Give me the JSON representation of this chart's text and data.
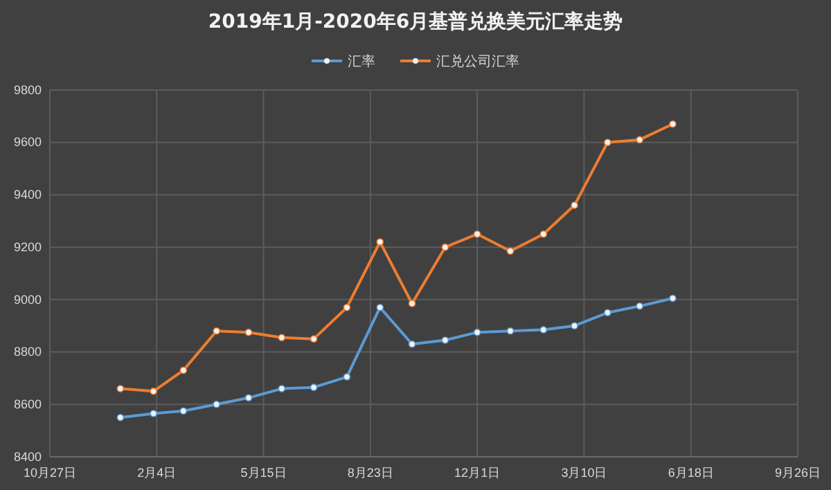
{
  "chart_data": {
    "type": "line",
    "title": "2019年1月-2020年6月基普兑换美元汇率走势",
    "x": [
      "2019-01",
      "2019-02",
      "2019-03",
      "2019-04",
      "2019-05",
      "2019-06",
      "2019-07",
      "2019-08",
      "2019-09",
      "2019-10",
      "2019-11",
      "2019-12",
      "2020-01",
      "2020-02",
      "2020-03",
      "2020-04",
      "2020-05",
      "2020-06"
    ],
    "series": [
      {
        "name": "汇率",
        "color": "#5b9bd5",
        "values": [
          8550,
          8565,
          8575,
          8600,
          8625,
          8660,
          8665,
          8705,
          8970,
          8830,
          8845,
          8875,
          8880,
          8885,
          8900,
          8950,
          8975,
          9005
        ]
      },
      {
        "name": "汇兑公司汇率",
        "color": "#ed7d31",
        "values": [
          8660,
          8650,
          8730,
          8880,
          8875,
          8855,
          8850,
          8970,
          9220,
          8985,
          9200,
          9250,
          9185,
          9250,
          9360,
          9600,
          9610,
          9670
        ]
      }
    ],
    "xlim": [
      "2018-10-27",
      "2020-09-26"
    ],
    "xticks": [
      {
        "value": "2018-10-27",
        "label": "10月27日"
      },
      {
        "value": "2019-02-04",
        "label": "2月4日"
      },
      {
        "value": "2019-05-15",
        "label": "5月15日"
      },
      {
        "value": "2019-08-23",
        "label": "8月23日"
      },
      {
        "value": "2019-12-01",
        "label": "12月1日"
      },
      {
        "value": "2020-03-10",
        "label": "3月10日"
      },
      {
        "value": "2020-06-18",
        "label": "6月18日"
      },
      {
        "value": "2020-09-26",
        "label": "9月26日"
      }
    ],
    "ylim": [
      8400,
      9800
    ],
    "yticks": [
      8400,
      8600,
      8800,
      9000,
      9200,
      9400,
      9600,
      9800
    ],
    "grid": true,
    "legend": "top",
    "marker": "circle",
    "line_style": "solid"
  }
}
